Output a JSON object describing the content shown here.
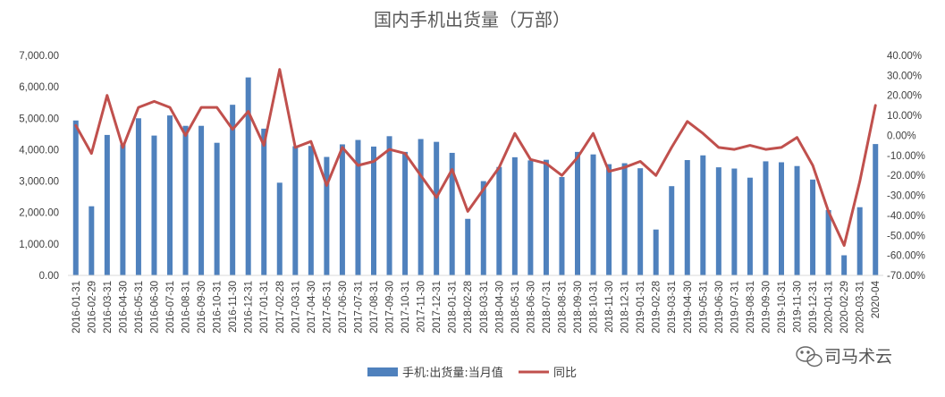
{
  "chart_data": {
    "type": "bar",
    "title": "国内手机出货量（万部）",
    "xlabel": "",
    "ylabel": "",
    "categories": [
      "2016-01-31",
      "2016-02-29",
      "2016-03-31",
      "2016-04-30",
      "2016-05-31",
      "2016-06-30",
      "2016-07-31",
      "2016-08-31",
      "2016-09-30",
      "2016-10-31",
      "2016-11-30",
      "2016-12-31",
      "2017-01-31",
      "2017-02-28",
      "2017-03-31",
      "2017-04-30",
      "2017-05-31",
      "2017-06-30",
      "2017-07-31",
      "2017-08-31",
      "2017-09-30",
      "2017-10-31",
      "2017-11-30",
      "2017-12-31",
      "2018-01-31",
      "2018-02-28",
      "2018-03-31",
      "2018-04-30",
      "2018-05-31",
      "2018-06-30",
      "2018-07-31",
      "2018-08-31",
      "2018-09-30",
      "2018-10-31",
      "2018-11-30",
      "2018-12-31",
      "2019-01-31",
      "2019-02-28",
      "2019-03-31",
      "2019-04-30",
      "2019-05-31",
      "2019-06-30",
      "2019-07-31",
      "2019-08-31",
      "2019-09-30",
      "2019-10-31",
      "2019-11-30",
      "2019-12-31",
      "2020-01-31",
      "2020-02-29",
      "2020-03-31",
      "2020-04"
    ],
    "series": [
      {
        "name": "手机:出货量:当月值",
        "type": "bar",
        "axis": "left",
        "color": "#4f81bd",
        "values": [
          4930,
          2200,
          4470,
          4170,
          5000,
          4450,
          5090,
          4760,
          4760,
          4220,
          5430,
          6300,
          4670,
          2950,
          4110,
          4120,
          3770,
          4170,
          4310,
          4100,
          4430,
          3930,
          4340,
          4250,
          3900,
          1800,
          3000,
          3450,
          3760,
          3660,
          3680,
          3130,
          3930,
          3850,
          3540,
          3570,
          3410,
          1460,
          2840,
          3670,
          3820,
          3440,
          3400,
          3110,
          3630,
          3600,
          3480,
          3050,
          2080,
          640,
          2170,
          4180
        ]
      },
      {
        "name": "同比",
        "type": "line",
        "axis": "right",
        "color": "#c0504d",
        "values": [
          5,
          -9,
          20,
          -6,
          14,
          17,
          14,
          0,
          14,
          14,
          3,
          12,
          -5,
          33,
          -6,
          -3,
          -25,
          -6,
          -15,
          -13,
          -7,
          -9,
          -20,
          -31,
          -17,
          -38,
          -27,
          -16,
          1,
          -12,
          -14,
          -20,
          -11,
          1,
          -18,
          -16,
          -13,
          -20,
          -6,
          7,
          1,
          -6,
          -7,
          -5,
          -7,
          -6,
          -1,
          -15,
          -38,
          -55,
          -23,
          15
        ]
      }
    ],
    "y_left": {
      "min": 0,
      "max": 7000,
      "ticks": [
        "0.00",
        "1,000.00",
        "2,000.00",
        "3,000.00",
        "4,000.00",
        "5,000.00",
        "6,000.00",
        "7,000.00"
      ]
    },
    "y_right": {
      "min": -70,
      "max": 40,
      "ticks": [
        "-70.00%",
        "-60.00%",
        "-50.00%",
        "-40.00%",
        "-30.00%",
        "-20.00%",
        "-10.00%",
        "0.00%",
        "10.00%",
        "20.00%",
        "30.00%",
        "40.00%"
      ]
    },
    "grid": false,
    "legend_position": "bottom",
    "watermark": "司马术云"
  }
}
